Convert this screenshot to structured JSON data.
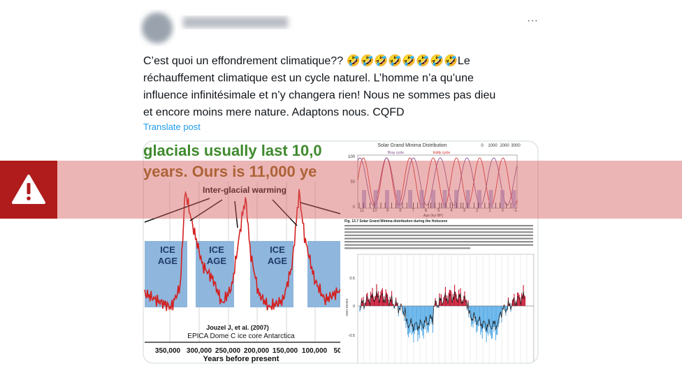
{
  "post": {
    "more": "···",
    "text_lines": [
      "C’est quoi un effondrement climatique?? 🤣🤣🤣🤣🤣🤣🤣🤣Le",
      "réchauffement climatique est un cycle naturel. L’homme n’a qu’une",
      "influence infinitésimale et n’y changera rien! Nous ne sommes pas dieu",
      "et encore moins mere nature. Adaptons nous. CQFD"
    ],
    "translate": "Translate post"
  },
  "images": {
    "left": {
      "headline": [
        "glacials usually last 10,0",
        "years. Ours is 11,000 ye"
      ],
      "annotation": "Inter-glacial warming",
      "ice_age_labels": [
        [
          "ICE",
          "AGE"
        ],
        [
          "ICE",
          "AGE"
        ],
        [
          "ICE",
          "AGE"
        ]
      ],
      "credit": "Jouzel J, et al. (2007)",
      "source": "EPICA Dome C ice core Antarctica",
      "x_ticks": [
        "350,000",
        "300,000",
        "250,000",
        "200,000",
        "150,000",
        "100,000",
        "50"
      ],
      "x_label": "Years before present"
    },
    "right": {
      "title": "Solar Grand Minima Distribution",
      "legend": [
        "Bray cycle",
        "Eddy cycle"
      ],
      "top_ticks": [
        "0",
        "1000",
        "2000",
        "3000"
      ],
      "y_ticks": [
        "100",
        "50",
        "0"
      ],
      "x_ticks": [
        "11",
        "10",
        "9",
        "8",
        "7",
        "6",
        "5",
        "4",
        "3",
        "2",
        "1",
        "0",
        "-1"
      ],
      "x_label": "Age (kyr BP)",
      "caption": "Fig. 13.7 Solar Grand Minima distribution during the Holocene",
      "amo_ticks": [
        "0.5",
        "0",
        "-0.5"
      ],
      "amo_label": "AMO INDEX"
    }
  }
}
